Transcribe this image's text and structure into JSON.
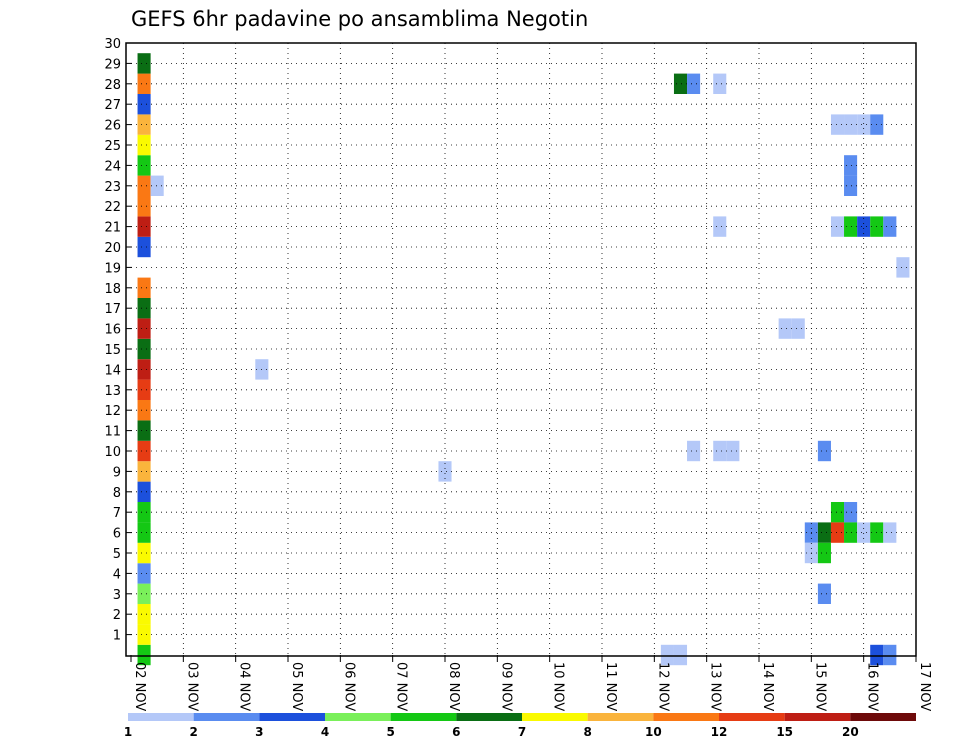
{
  "chart_data": {
    "type": "heatmap",
    "title": "GEFS 6hr padavine po ansamblima Negotin",
    "y_members": [
      1,
      2,
      3,
      4,
      5,
      6,
      7,
      8,
      9,
      10,
      11,
      12,
      13,
      14,
      15,
      16,
      17,
      18,
      19,
      20,
      21,
      22,
      23,
      24,
      25,
      26,
      27,
      28,
      29,
      30
    ],
    "x_tick_labels": [
      "02 NOV",
      "03 NOV",
      "04 NOV",
      "05 NOV",
      "06 NOV",
      "07 NOV",
      "08 NOV",
      "09 NOV",
      "10 NOV",
      "11 NOV",
      "12 NOV",
      "13 NOV",
      "14 NOV",
      "15 NOV",
      "16 NOV",
      "17 NOV"
    ],
    "xlim_days": [
      0,
      15
    ],
    "ylim": [
      0,
      30
    ],
    "grid": true,
    "time_step_days": 0.25,
    "colorbar": {
      "levels": [
        "1",
        "2",
        "3",
        "4",
        "5",
        "6",
        "7",
        "8",
        "10",
        "12",
        "15",
        "20"
      ],
      "colors": [
        "#b4c8f8",
        "#5a8cf0",
        "#1c50dc",
        "#7af05a",
        "#14c814",
        "#0a6e14",
        "#fafa00",
        "#fab43c",
        "#fa7814",
        "#e63c14",
        "#be1e14",
        "#6e0a0a"
      ]
    },
    "cells": [
      {
        "t": 0.25,
        "m": 0,
        "c": 4
      },
      {
        "t": 0.25,
        "m": 1,
        "c": 6
      },
      {
        "t": 0.25,
        "m": 2,
        "c": 6
      },
      {
        "t": 0.25,
        "m": 3,
        "c": 3
      },
      {
        "t": 0.25,
        "m": 4,
        "c": 1
      },
      {
        "t": 0.25,
        "m": 5,
        "c": 6
      },
      {
        "t": 0.25,
        "m": 6,
        "c": 4
      },
      {
        "t": 0.25,
        "m": 7,
        "c": 4
      },
      {
        "t": 0.25,
        "m": 8,
        "c": 2
      },
      {
        "t": 0.25,
        "m": 9,
        "c": 7
      },
      {
        "t": 0.25,
        "m": 10,
        "c": 9
      },
      {
        "t": 0.25,
        "m": 11,
        "c": 5
      },
      {
        "t": 0.25,
        "m": 12,
        "c": 8
      },
      {
        "t": 0.25,
        "m": 13,
        "c": 9
      },
      {
        "t": 0.25,
        "m": 14,
        "c": 10
      },
      {
        "t": 0.25,
        "m": 15,
        "c": 5
      },
      {
        "t": 0.25,
        "m": 16,
        "c": 10
      },
      {
        "t": 0.25,
        "m": 17,
        "c": 5
      },
      {
        "t": 0.25,
        "m": 18,
        "c": 8
      },
      {
        "t": 0.25,
        "m": 20,
        "c": 2
      },
      {
        "t": 0.25,
        "m": 21,
        "c": 10
      },
      {
        "t": 0.25,
        "m": 22,
        "c": 8
      },
      {
        "t": 0.25,
        "m": 23,
        "c": 8
      },
      {
        "t": 0.25,
        "m": 24,
        "c": 4
      },
      {
        "t": 0.25,
        "m": 25,
        "c": 6
      },
      {
        "t": 0.25,
        "m": 26,
        "c": 7
      },
      {
        "t": 0.25,
        "m": 27,
        "c": 2
      },
      {
        "t": 0.25,
        "m": 28,
        "c": 8
      },
      {
        "t": 0.25,
        "m": 29,
        "c": 5
      },
      {
        "t": 0.5,
        "m": 23,
        "c": 0
      },
      {
        "t": 2.5,
        "m": 14,
        "c": 0
      },
      {
        "t": 6.0,
        "m": 9,
        "c": 0
      },
      {
        "t": 10.25,
        "m": 0,
        "c": 0
      },
      {
        "t": 10.5,
        "m": 0,
        "c": 0
      },
      {
        "t": 10.5,
        "m": 28,
        "c": 5
      },
      {
        "t": 10.75,
        "m": 28,
        "c": 1
      },
      {
        "t": 10.75,
        "m": 10,
        "c": 0
      },
      {
        "t": 11.25,
        "m": 28,
        "c": 0
      },
      {
        "t": 11.25,
        "m": 21,
        "c": 0
      },
      {
        "t": 11.25,
        "m": 10,
        "c": 0
      },
      {
        "t": 11.5,
        "m": 10,
        "c": 0
      },
      {
        "t": 12.5,
        "m": 16,
        "c": 0
      },
      {
        "t": 12.75,
        "m": 16,
        "c": 0
      },
      {
        "t": 13.0,
        "m": 6,
        "c": 1
      },
      {
        "t": 13.0,
        "m": 5,
        "c": 0
      },
      {
        "t": 13.25,
        "m": 10,
        "c": 1
      },
      {
        "t": 13.25,
        "m": 6,
        "c": 5
      },
      {
        "t": 13.25,
        "m": 5,
        "c": 4
      },
      {
        "t": 13.25,
        "m": 3,
        "c": 1
      },
      {
        "t": 13.5,
        "m": 7,
        "c": 4
      },
      {
        "t": 13.5,
        "m": 6,
        "c": 9
      },
      {
        "t": 13.5,
        "m": 21,
        "c": 0
      },
      {
        "t": 13.5,
        "m": 26,
        "c": 0
      },
      {
        "t": 13.75,
        "m": 7,
        "c": 1
      },
      {
        "t": 13.75,
        "m": 6,
        "c": 4
      },
      {
        "t": 13.75,
        "m": 21,
        "c": 4
      },
      {
        "t": 13.75,
        "m": 23,
        "c": 1
      },
      {
        "t": 13.75,
        "m": 24,
        "c": 1
      },
      {
        "t": 13.75,
        "m": 26,
        "c": 0
      },
      {
        "t": 14.0,
        "m": 6,
        "c": 0
      },
      {
        "t": 14.0,
        "m": 21,
        "c": 2
      },
      {
        "t": 14.0,
        "m": 26,
        "c": 0
      },
      {
        "t": 14.25,
        "m": 6,
        "c": 4
      },
      {
        "t": 14.25,
        "m": 21,
        "c": 4
      },
      {
        "t": 14.25,
        "m": 26,
        "c": 1
      },
      {
        "t": 14.25,
        "m": 0,
        "c": 2
      },
      {
        "t": 14.5,
        "m": 6,
        "c": 0
      },
      {
        "t": 14.5,
        "m": 21,
        "c": 1
      },
      {
        "t": 14.5,
        "m": 0,
        "c": 1
      },
      {
        "t": 14.75,
        "m": 19,
        "c": 0
      }
    ]
  }
}
